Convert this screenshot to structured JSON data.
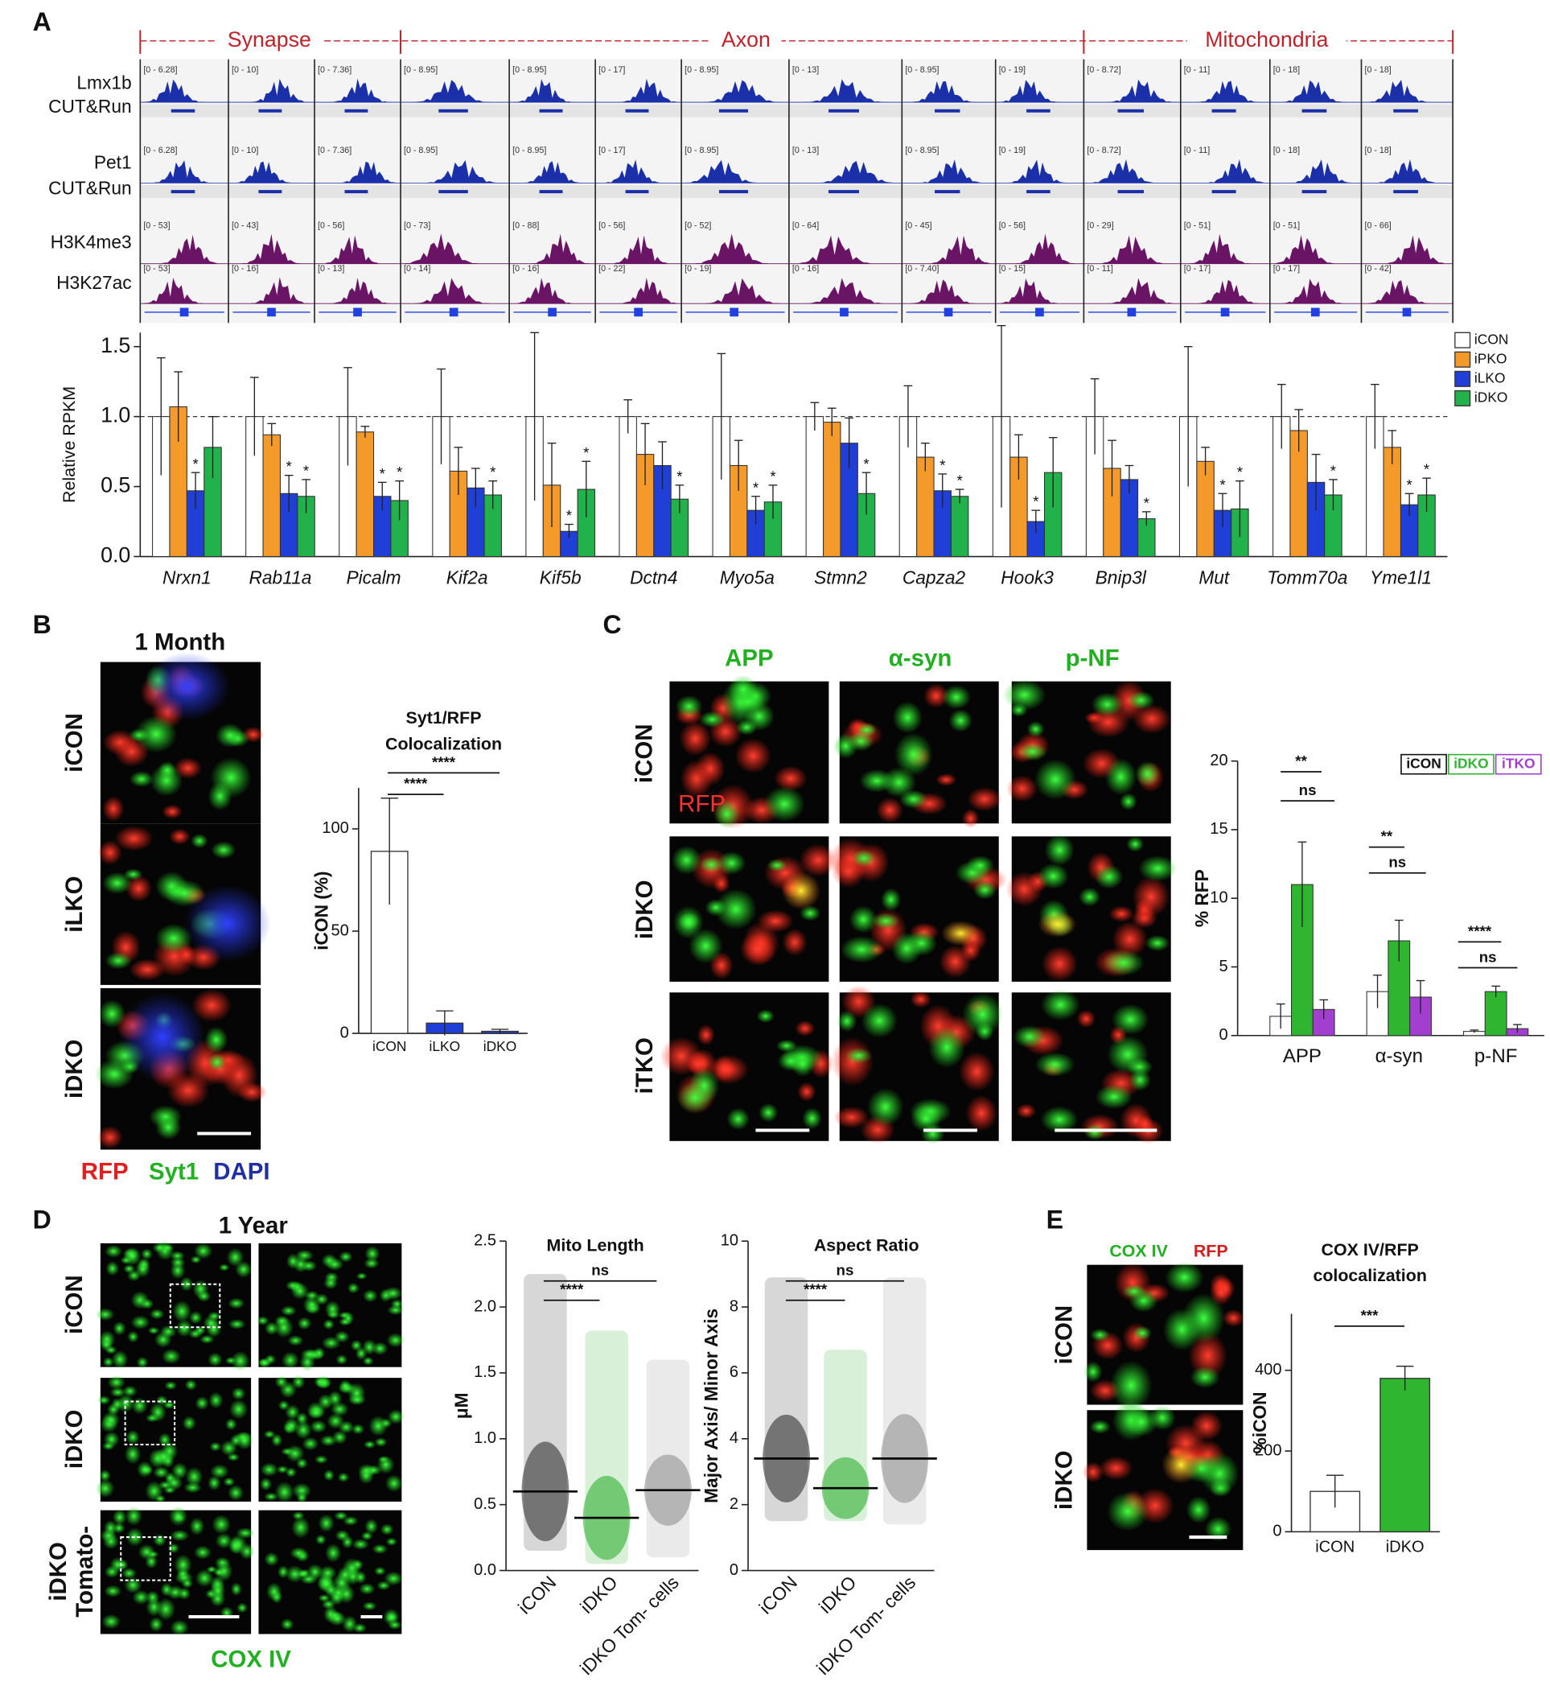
{
  "panel_labels": [
    "A",
    "B",
    "C",
    "D",
    "E"
  ],
  "genome_tracks": {
    "regions": [
      "Synapse",
      "Axon",
      "Mitochondria"
    ],
    "track_names": [
      "Lmx1b",
      "CUT&Run",
      "Pet1",
      "CUT&Run",
      "H3K4me3",
      "H3K27ac"
    ],
    "range_labels": [
      [
        "[0 - 6.28]",
        "[0 - 10]",
        "[0 - 7.36]",
        "[0 - 8.95]",
        "[0 - 8.95]",
        "[0 - 17]",
        "[0 - 8.95]",
        "[0 - 13]",
        "[0 - 8.95]",
        "[0 - 19]",
        "[0 - 8.72]",
        "[0 - 11]",
        "[0 - 18]",
        "[0 - 18]"
      ],
      [
        "[0 - 6.28]",
        "[0 - 10]",
        "[0 - 7.36]",
        "[0 - 8.95]",
        "[0 - 8.95]",
        "[0 - 17]",
        "[0 - 8.95]",
        "[0 - 13]",
        "[0 - 8.95]",
        "[0 - 19]",
        "[0 - 8.72]",
        "[0 - 11]",
        "[0 - 18]",
        "[0 - 18]"
      ],
      [
        "[0 - 53]",
        "[0 - 43]",
        "[0 - 56]",
        "[0 - 73]",
        "[0 - 88]",
        "[0 - 56]",
        "[0 - 52]",
        "[0 - 64]",
        "[0 - 45]",
        "[0 - 56]",
        "[0 - 29]",
        "[0 - 51]",
        "[0 - 51]",
        "[0 - 66]"
      ],
      [
        "[0 - 53]",
        "[0 - 16]",
        "[0 - 13]",
        "[0 - 14]",
        "[0 - 16]",
        "[0 - 22]",
        "[0 - 19]",
        "[0 - 16]",
        "[0 - 7.40]",
        "[0 - 15]",
        "[0 - 11]",
        "[0 - 17]",
        "[0 - 17]",
        "[0 - 42]"
      ]
    ]
  },
  "images": {
    "B": {
      "time": "1 Month",
      "rows": [
        "iCON",
        "iLKO",
        "iDKO"
      ],
      "stains": [
        "RFP",
        "Syt1",
        "DAPI"
      ]
    },
    "C": {
      "columns": [
        "APP",
        "α-syn",
        "p-NF"
      ],
      "rows": [
        "iCON",
        "iDKO",
        "iTKO"
      ],
      "overlay": "RFP"
    },
    "D": {
      "time": "1 Year",
      "rows": [
        "iCON",
        "iDKO",
        "iDKO"
      ],
      "row_suffix": "Tomato-",
      "stain": "COX IV"
    },
    "E": {
      "stains": [
        "COX IV",
        "RFP"
      ],
      "rows": [
        "iCON",
        "iDKO"
      ]
    }
  },
  "chart_data": [
    {
      "type": "bar",
      "ylabel": "Relative RPKM",
      "categories": [
        "Nrxn1",
        "Rab11a",
        "Picalm",
        "Kif2a",
        "Kif5b",
        "Dctn4",
        "Myo5a",
        "Stmn2",
        "Capza2",
        "Hook3",
        "Bnip3l",
        "Mut",
        "Tomm70a",
        "Yme1l1"
      ],
      "series": [
        {
          "name": "iCON",
          "color": "#ffffff",
          "values": [
            1,
            1,
            1,
            1,
            1,
            1,
            1,
            1,
            1,
            1,
            1,
            1,
            1,
            1
          ],
          "errors": [
            0.42,
            0.28,
            0.35,
            0.34,
            0.6,
            0.12,
            0.45,
            0.1,
            0.22,
            0.65,
            0.27,
            0.5,
            0.23,
            0.23
          ]
        },
        {
          "name": "iPKO",
          "color": "#f39a2b",
          "values": [
            1.07,
            0.87,
            0.89,
            0.61,
            0.51,
            0.73,
            0.65,
            0.96,
            0.71,
            0.71,
            0.63,
            0.68,
            0.9,
            0.78
          ],
          "errors": [
            0.25,
            0.08,
            0.04,
            0.17,
            0.3,
            0.22,
            0.18,
            0.1,
            0.1,
            0.16,
            0.2,
            0.1,
            0.15,
            0.12
          ]
        },
        {
          "name": "iLKO",
          "color": "#1f3fd6",
          "values": [
            0.47,
            0.45,
            0.43,
            0.49,
            0.18,
            0.65,
            0.33,
            0.81,
            0.47,
            0.25,
            0.55,
            0.33,
            0.53,
            0.37
          ],
          "errors": [
            0.13,
            0.13,
            0.1,
            0.14,
            0.05,
            0.17,
            0.1,
            0.18,
            0.12,
            0.08,
            0.1,
            0.12,
            0.2,
            0.08
          ],
          "significance": [
            "*",
            "*",
            "*",
            null,
            "*",
            null,
            "*",
            null,
            "*",
            "*",
            null,
            "*",
            null,
            "*"
          ]
        },
        {
          "name": "iDKO",
          "color": "#22b24c",
          "values": [
            0.78,
            0.43,
            0.4,
            0.44,
            0.48,
            0.41,
            0.39,
            0.45,
            0.43,
            0.6,
            0.27,
            0.34,
            0.44,
            0.44
          ],
          "errors": [
            0.22,
            0.12,
            0.14,
            0.1,
            0.2,
            0.1,
            0.12,
            0.15,
            0.05,
            0.25,
            0.05,
            0.2,
            0.11,
            0.12
          ],
          "significance": [
            null,
            "*",
            "*",
            "*",
            "*",
            "*",
            "*",
            "*",
            "*",
            null,
            "*",
            "*",
            "*",
            "*"
          ]
        }
      ],
      "ylim": [
        0,
        1.6
      ],
      "yticks": [
        {
          "value": 0,
          "label": "0.0"
        },
        {
          "value": 0.5,
          "label": "0.5"
        },
        {
          "value": 1,
          "label": "1.0"
        },
        {
          "value": 1.5,
          "label": "1.5"
        }
      ],
      "reference_line": 1,
      "legend": "upper right"
    },
    {
      "type": "bar",
      "title": "Syt1/RFP",
      "subtitle": "Colocalization",
      "ylabel": "iCON (%)",
      "categories": [
        "iCON",
        "iLKO",
        "iDKO"
      ],
      "values": [
        89,
        5,
        1
      ],
      "errors": [
        26,
        6,
        1
      ],
      "colors": [
        "#ffffff",
        "#1f3fd6",
        "#1f3fd6"
      ],
      "ylim": [
        0,
        120
      ],
      "yticks": [
        0,
        50,
        100
      ],
      "comparisons": [
        "****",
        "****"
      ]
    },
    {
      "type": "bar",
      "ylabel": "% RFP",
      "categories": [
        "APP",
        "α-syn",
        "p-NF"
      ],
      "series": [
        {
          "name": "iCON",
          "color": "#ffffff",
          "values": [
            1.4,
            3.2,
            0.3
          ],
          "errors": [
            0.9,
            1.2,
            0.1
          ]
        },
        {
          "name": "iDKO",
          "color": "#2fb52f",
          "values": [
            11,
            6.9,
            3.2
          ],
          "errors": [
            3.1,
            1.5,
            0.4
          ]
        },
        {
          "name": "iTKO",
          "color": "#a23fd0",
          "values": [
            1.9,
            2.8,
            0.5
          ],
          "errors": [
            0.7,
            1.2,
            0.3
          ]
        }
      ],
      "ylim": [
        0,
        20
      ],
      "yticks": [
        0,
        5,
        10,
        15,
        20
      ],
      "comparisons": [
        "**",
        "ns",
        "**",
        "ns",
        "****",
        "ns"
      ],
      "legend": "upper right"
    },
    {
      "type": "strip",
      "title": "Mito  Length",
      "ylabel": "μM",
      "categories": [
        "iCON",
        "iDKO",
        "iDKO Tom- cells"
      ],
      "colors": [
        "#222222",
        "#22aa22",
        "#888888"
      ],
      "medians": [
        0.6,
        0.4,
        0.61
      ],
      "ranges": [
        [
          0.15,
          2.25
        ],
        [
          0.05,
          1.82
        ],
        [
          0.1,
          1.6
        ]
      ],
      "ylim": [
        0,
        2.5
      ],
      "yticks": [
        {
          "value": 0,
          "label": "0.0"
        },
        {
          "value": 0.5,
          "label": "0.5"
        },
        {
          "value": 1,
          "label": "1.0"
        },
        {
          "value": 1.5,
          "label": "1.5"
        },
        {
          "value": 2,
          "label": "2.0"
        },
        {
          "value": 2.5,
          "label": "2.5"
        }
      ],
      "comparisons": [
        "****",
        "ns"
      ]
    },
    {
      "type": "strip",
      "title": "Aspect  Ratio",
      "ylabel": "Major Axis/ Minor Axis",
      "categories": [
        "iCON",
        "iDKO",
        "iDKO Tom- cells"
      ],
      "colors": [
        "#222222",
        "#22aa22",
        "#888888"
      ],
      "medians": [
        3.4,
        2.5,
        3.4
      ],
      "ranges": [
        [
          1.5,
          8.9
        ],
        [
          1.5,
          6.7
        ],
        [
          1.4,
          8.9
        ]
      ],
      "ylim": [
        0,
        10
      ],
      "yticks": [
        0,
        2,
        4,
        6,
        8,
        10
      ],
      "comparisons": [
        "****",
        "ns"
      ]
    },
    {
      "type": "bar",
      "title": "COX IV/RFP",
      "subtitle": "colocalization",
      "ylabel": "%iCON",
      "categories": [
        "iCON",
        "iDKO"
      ],
      "values": [
        100,
        380
      ],
      "errors": [
        40,
        30
      ],
      "colors": [
        "#ffffff",
        "#2fb52f"
      ],
      "ylim": [
        0,
        540
      ],
      "yticks": [
        0,
        200,
        400
      ],
      "comparisons": [
        "***"
      ]
    }
  ]
}
